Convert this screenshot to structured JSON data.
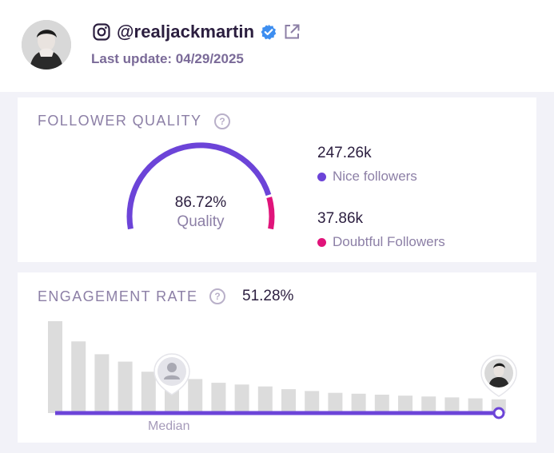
{
  "profile": {
    "handle": "@realjackmartin",
    "last_update": "Last update: 04/29/2025"
  },
  "follower_quality": {
    "title": "FOLLOWER QUALITY",
    "quality_pct": "86.72%",
    "quality_label": "Quality",
    "quality_fraction": 0.8672,
    "nice_count": "247.26k",
    "nice_label": "Nice followers",
    "doubtful_count": "37.86k",
    "doubtful_label": "Doubtful Followers",
    "colors": {
      "nice": "#6c44d8",
      "doubtful": "#e0147a"
    }
  },
  "engagement": {
    "title": "ENGAGEMENT RATE",
    "rate": "51.28%",
    "median_label": "Median",
    "bar_heights_relative": [
      1.0,
      0.78,
      0.64,
      0.56,
      0.45,
      0.41,
      0.37,
      0.33,
      0.31,
      0.29,
      0.26,
      0.24,
      0.22,
      0.21,
      0.2,
      0.19,
      0.18,
      0.17,
      0.16,
      0.15
    ],
    "median_bar_index": 4,
    "user_bar_index": 19,
    "colors": {
      "bar": "#dcdcdc",
      "line": "#6c44d8"
    }
  },
  "icons": [
    "instagram-icon",
    "verified-badge-icon",
    "external-link-icon",
    "help-icon",
    "user-placeholder-icon"
  ]
}
